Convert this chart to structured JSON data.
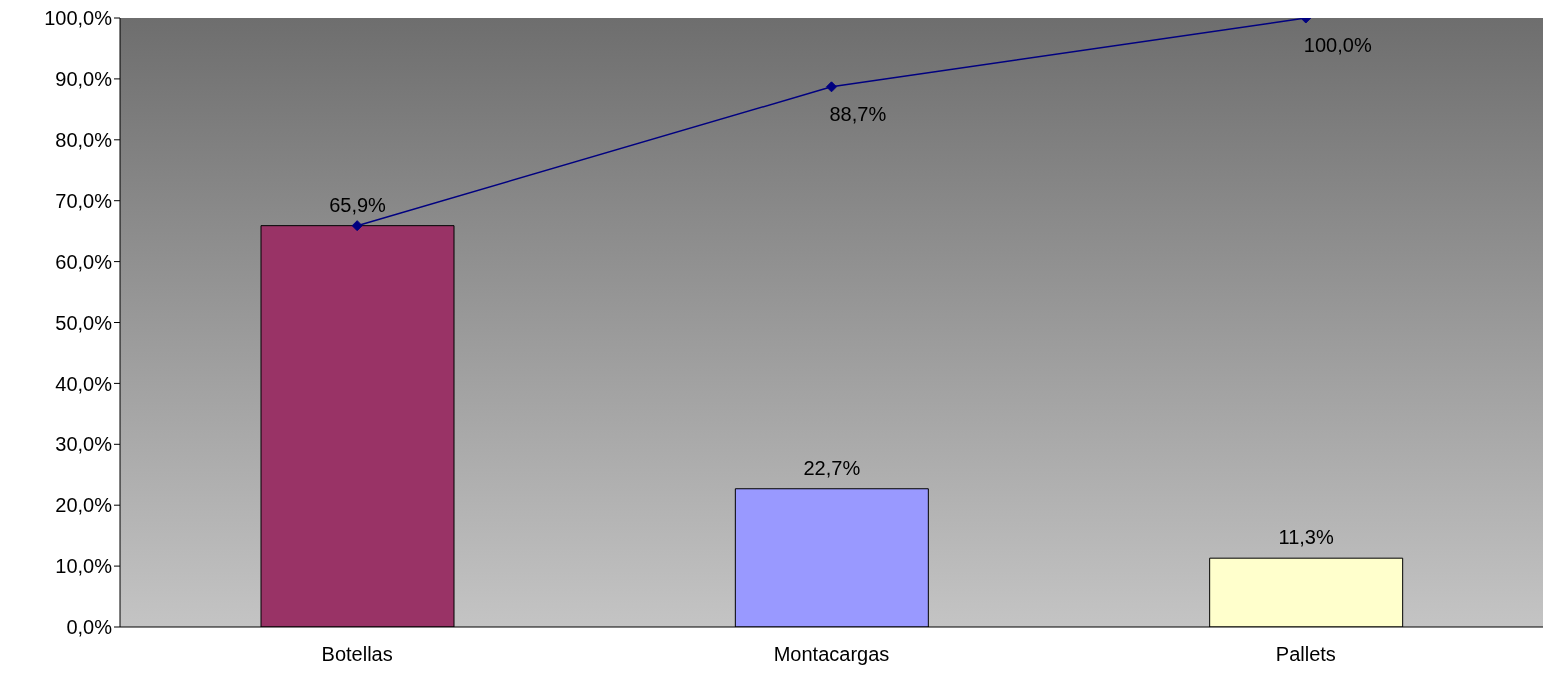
{
  "chart_data": {
    "type": "bar",
    "categories": [
      "Botellas",
      "Montacargas",
      "Pallets"
    ],
    "ylim": [
      0,
      100
    ],
    "yticks": [
      {
        "value": 0,
        "label": "0,0%"
      },
      {
        "value": 10,
        "label": "10,0%"
      },
      {
        "value": 20,
        "label": "20,0%"
      },
      {
        "value": 30,
        "label": "30,0%"
      },
      {
        "value": 40,
        "label": "40,0%"
      },
      {
        "value": 50,
        "label": "50,0%"
      },
      {
        "value": 60,
        "label": "60,0%"
      },
      {
        "value": 70,
        "label": "70,0%"
      },
      {
        "value": 80,
        "label": "80,0%"
      },
      {
        "value": 90,
        "label": "90,0%"
      },
      {
        "value": 100,
        "label": "100,0%"
      }
    ],
    "marker": "diamond",
    "series": [
      {
        "colors": [
          "#993366",
          "#9999ff",
          "#ffffcc"
        ],
        "values": [
          65.9,
          22.7,
          11.3
        ],
        "value_labels": [
          "65,9%",
          "22,7%",
          "11,3%"
        ]
      },
      {
        "type": "line",
        "color": "#000080",
        "values": [
          65.9,
          88.7,
          100.0
        ],
        "value_labels": [
          null,
          "88,7%",
          "100,0%"
        ]
      }
    ]
  }
}
